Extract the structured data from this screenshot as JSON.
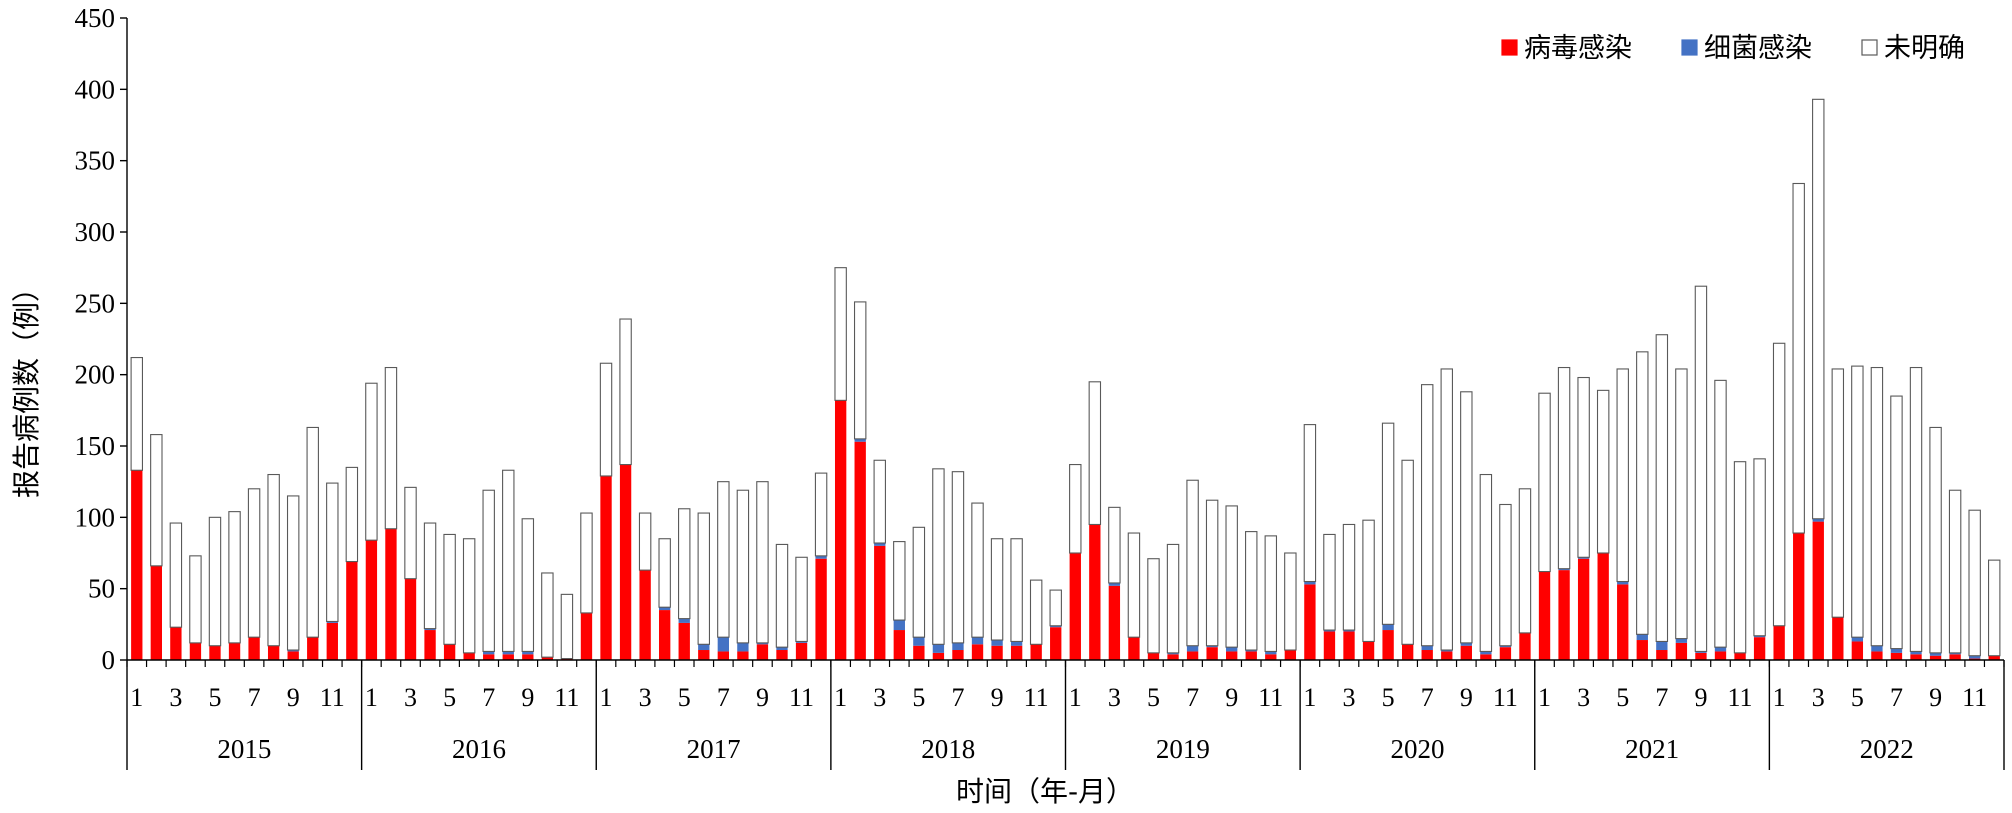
{
  "colors": {
    "viral": "#ff0000",
    "bacterial": "#4472c4",
    "unknown": "#ffffff",
    "outline": "#595959"
  },
  "chart_data": {
    "type": "bar",
    "stacked": true,
    "title": "",
    "xlabel": "时间（年-月）",
    "ylabel": "报告病例数（例）",
    "ylim": [
      0,
      450
    ],
    "yticks": [
      0,
      50,
      100,
      150,
      200,
      250,
      300,
      350,
      400,
      450
    ],
    "grid": false,
    "legend_position": "top-right",
    "years": [
      "2015",
      "2016",
      "2017",
      "2018",
      "2019",
      "2020",
      "2021",
      "2022"
    ],
    "month_tick_labels": [
      "1",
      "3",
      "5",
      "7",
      "9",
      "11"
    ],
    "legend": [
      {
        "label": "病毒感染",
        "color": "#ff0000"
      },
      {
        "label": "细菌感染",
        "color": "#4472c4"
      },
      {
        "label": "未明确",
        "color": "#ffffff"
      }
    ],
    "series": [
      {
        "name": "病毒感染",
        "values": [
          133,
          66,
          23,
          12,
          10,
          12,
          16,
          10,
          6,
          16,
          26,
          69,
          84,
          92,
          57,
          21,
          11,
          5,
          4,
          4,
          4,
          2,
          1,
          33,
          129,
          137,
          63,
          35,
          26,
          7,
          6,
          6,
          11,
          7,
          12,
          71,
          182,
          153,
          80,
          21,
          10,
          5,
          7,
          11,
          10,
          10,
          11,
          23,
          75,
          95,
          52,
          16,
          5,
          4,
          6,
          9,
          6,
          6,
          4,
          7,
          53,
          20,
          20,
          13,
          21,
          11,
          7,
          6,
          10,
          4,
          9,
          19,
          62,
          63,
          71,
          75,
          53,
          14,
          7,
          12,
          5,
          6,
          5,
          16,
          24,
          89,
          97,
          30,
          13,
          6,
          5,
          4,
          3,
          4,
          1,
          3
        ]
      },
      {
        "name": "细菌感染",
        "values": [
          0,
          0,
          0,
          0,
          0,
          0,
          0,
          0,
          1,
          0,
          1,
          0,
          0,
          0,
          0,
          1,
          0,
          0,
          2,
          2,
          2,
          0,
          0,
          0,
          0,
          0,
          0,
          2,
          3,
          4,
          10,
          6,
          1,
          2,
          1,
          2,
          0,
          2,
          2,
          7,
          6,
          6,
          5,
          5,
          4,
          3,
          0,
          1,
          0,
          0,
          2,
          0,
          0,
          1,
          4,
          1,
          3,
          1,
          2,
          0,
          2,
          1,
          1,
          0,
          4,
          0,
          3,
          1,
          2,
          2,
          1,
          0,
          0,
          1,
          1,
          0,
          2,
          4,
          6,
          3,
          1,
          3,
          0,
          1,
          0,
          0,
          2,
          0,
          3,
          4,
          3,
          2,
          2,
          1,
          2,
          0
        ]
      },
      {
        "name": "未明确",
        "values": [
          79,
          92,
          73,
          61,
          90,
          92,
          104,
          120,
          108,
          147,
          97,
          66,
          110,
          113,
          64,
          74,
          77,
          80,
          113,
          127,
          93,
          59,
          45,
          70,
          79,
          102,
          40,
          48,
          77,
          92,
          109,
          107,
          113,
          72,
          59,
          58,
          93,
          96,
          58,
          55,
          77,
          123,
          120,
          94,
          71,
          72,
          45,
          25,
          62,
          100,
          53,
          73,
          66,
          76,
          116,
          102,
          99,
          83,
          81,
          68,
          110,
          67,
          74,
          85,
          141,
          129,
          183,
          197,
          176,
          124,
          99,
          101,
          125,
          141,
          126,
          114,
          149,
          198,
          215,
          189,
          256,
          187,
          134,
          124,
          198,
          245,
          294,
          174,
          190,
          195,
          177,
          199,
          158,
          114,
          102,
          67
        ]
      }
    ]
  }
}
